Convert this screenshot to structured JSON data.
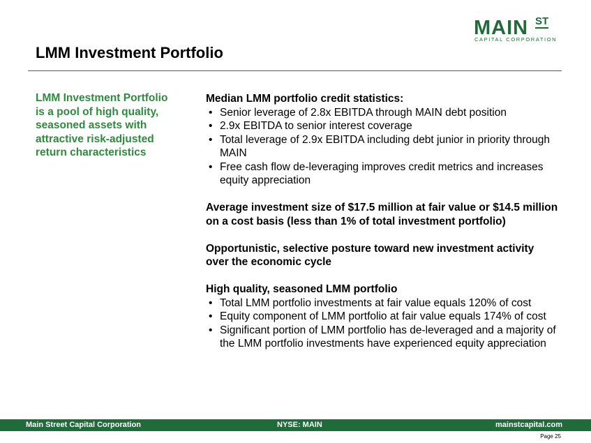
{
  "logo": {
    "main": "MAIN",
    "st": "ST",
    "sub": "CAPITAL CORPORATION"
  },
  "title": "LMM Investment Portfolio",
  "sidebar": {
    "lines": [
      "LMM Investment Portfolio",
      "is a pool of high quality,",
      "seasoned assets with",
      "attractive risk-adjusted",
      "return characteristics"
    ]
  },
  "sections": [
    {
      "heading": "Median LMM portfolio credit statistics:",
      "bullets": [
        "Senior leverage of 2.8x EBITDA through MAIN debt position",
        "2.9x EBITDA to senior interest coverage",
        "Total leverage of 2.9x EBITDA including debt junior in priority through MAIN",
        "Free cash flow de-leveraging improves credit metrics and increases equity appreciation"
      ]
    },
    {
      "heading": "Average investment size of $17.5 million at fair value or $14.5 million on a cost basis (less than 1% of total investment portfolio)",
      "bullets": []
    },
    {
      "heading": "Opportunistic, selective posture toward new investment activity over the economic cycle",
      "bullets": []
    },
    {
      "heading": "High quality, seasoned LMM portfolio",
      "bullets": [
        "Total LMM portfolio investments at fair value equals 120% of cost",
        "Equity component of LMM portfolio at fair value equals 174% of cost",
        "Significant portion of LMM portfolio has de-leveraged and a majority of the LMM portfolio investments have experienced equity appreciation"
      ]
    }
  ],
  "bullet_char": "•",
  "footer": {
    "left": "Main Street Capital Corporation",
    "center": "NYSE: MAIN",
    "right": "mainstcapital.com"
  },
  "page": "Page  25",
  "colors": {
    "brand_green": "#1f6b3a",
    "accent_green": "#2e8b3e"
  }
}
